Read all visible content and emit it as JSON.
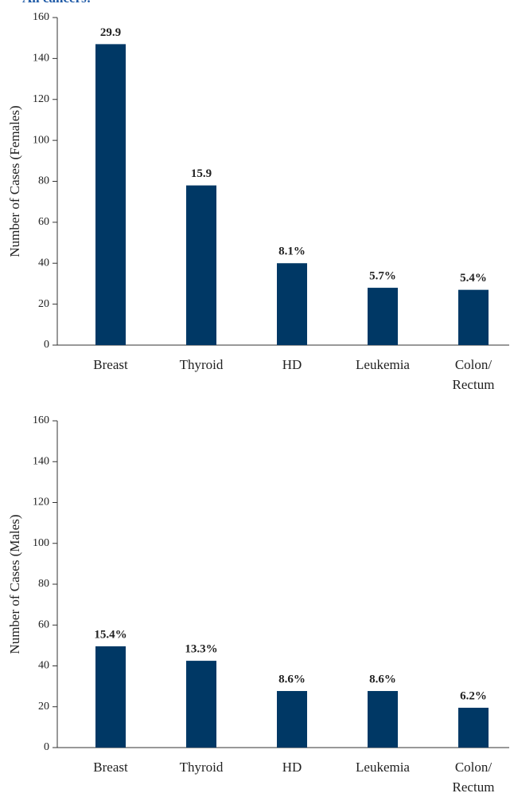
{
  "heading": "All cancers:",
  "chart_data": [
    {
      "type": "bar",
      "categories": [
        "Breast",
        "Thyroid",
        "HD",
        "Leukemia",
        "Colon/\nRectum"
      ],
      "values": [
        147,
        78,
        40,
        28,
        27
      ],
      "color": "#003865",
      "annotations": [
        "29.9",
        "15.9",
        "8.1%",
        "5.7%",
        "5.4%"
      ],
      "ylabel": "Number of Cases (Females)",
      "ylim": [
        0,
        160
      ],
      "yticks": [
        0,
        20,
        40,
        60,
        80,
        100,
        120,
        140,
        160
      ]
    },
    {
      "type": "bar",
      "categories": [
        "Breast",
        "Thyroid",
        "HD",
        "Leukemia",
        "Colon/\nRectum"
      ],
      "values": [
        49.6,
        42.5,
        27.7,
        27.7,
        19.5
      ],
      "color": "#003865",
      "annotations": [
        "15.4%",
        "13.3%",
        "8.6%",
        "8.6%",
        "6.2%"
      ],
      "ylabel": "Number of Cases (Males)",
      "ylim": [
        0,
        160
      ],
      "yticks": [
        0,
        20,
        40,
        60,
        80,
        100,
        120,
        140,
        160
      ]
    }
  ]
}
